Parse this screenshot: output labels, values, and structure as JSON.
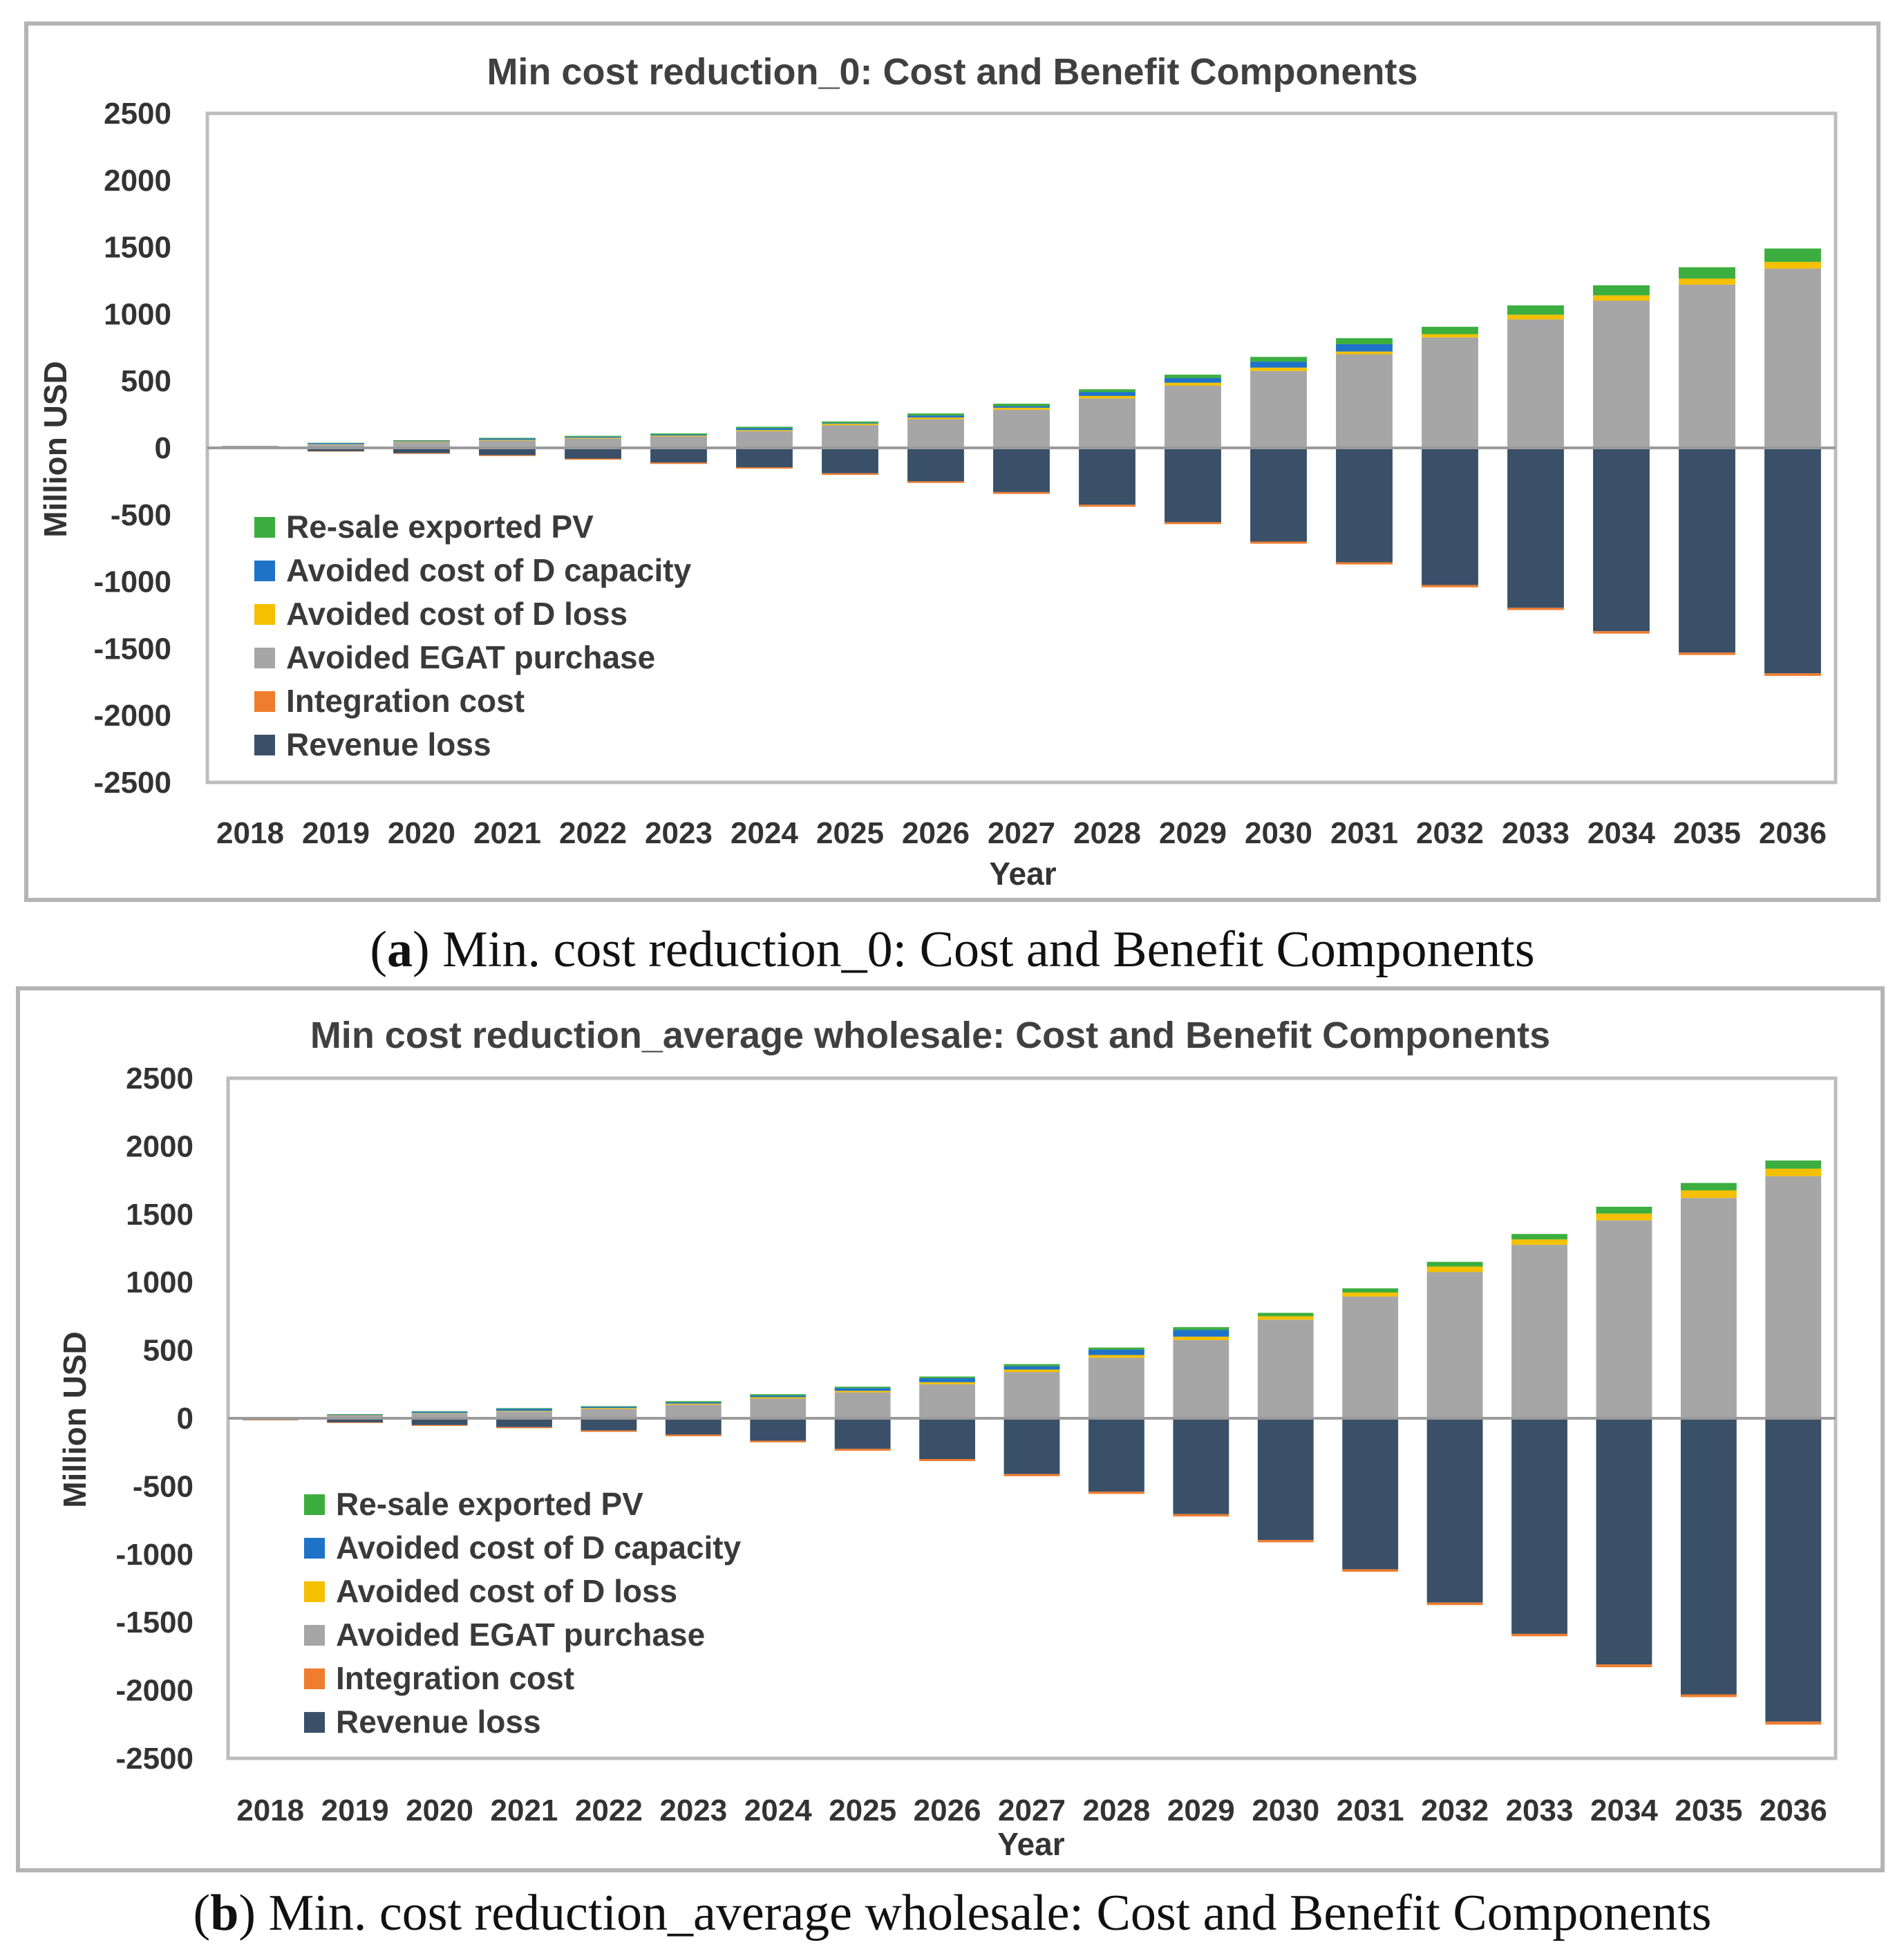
{
  "colors": {
    "resale": "#3CAE3F",
    "dcap": "#1E73C8",
    "dloss": "#F5C000",
    "egat": "#A6A6A6",
    "integ": "#F07D2E",
    "revloss": "#3A5068"
  },
  "chart_data": [
    {
      "type": "bar",
      "stacked": true,
      "title": "Min cost reduction_0: Cost and Benefit Components",
      "xlabel": "Year",
      "ylabel": "Million USD",
      "ylim": [
        -2500,
        2500
      ],
      "yticks": [
        "2500",
        "2000",
        "1500",
        "1000",
        "500",
        "0",
        "-500",
        "-1000",
        "-1500",
        "-2000",
        "-2500"
      ],
      "categories": [
        "2018",
        "2019",
        "2020",
        "2021",
        "2022",
        "2023",
        "2024",
        "2025",
        "2026",
        "2027",
        "2028",
        "2029",
        "2030",
        "2031",
        "2032",
        "2033",
        "2034",
        "2035",
        "2036"
      ],
      "legend_position": "bottom-left",
      "legend": [
        "Re-sale exported PV",
        "Avoided cost of D capacity",
        "Avoided cost of D loss",
        "Avoided EGAT purchase",
        "Integration cost",
        "Revenue loss"
      ],
      "series": [
        {
          "name": "Avoided EGAT purchase",
          "color_key": "egat",
          "values": [
            12,
            25,
            45,
            55,
            70,
            85,
            125,
            170,
            215,
            285,
            370,
            465,
            575,
            700,
            825,
            960,
            1100,
            1220,
            1340
          ]
        },
        {
          "name": "Avoided cost of D loss",
          "color_key": "dloss",
          "values": [
            1,
            3,
            4,
            5,
            6,
            7,
            8,
            10,
            12,
            15,
            18,
            22,
            25,
            20,
            25,
            35,
            40,
            45,
            50
          ]
        },
        {
          "name": "Avoided cost of D capacity",
          "color_key": "dcap",
          "values": [
            2,
            8,
            5,
            10,
            8,
            8,
            15,
            5,
            15,
            12,
            30,
            35,
            45,
            55,
            0,
            0,
            0,
            0,
            0
          ]
        },
        {
          "name": "Re-sale exported PV",
          "color_key": "resale",
          "values": [
            0,
            2,
            3,
            5,
            6,
            8,
            10,
            12,
            15,
            18,
            20,
            25,
            35,
            45,
            55,
            70,
            75,
            85,
            100
          ]
        },
        {
          "name": "Revenue loss",
          "color_key": "revloss",
          "values": [
            -8,
            -25,
            -40,
            -55,
            -80,
            -110,
            -145,
            -190,
            -250,
            -330,
            -425,
            -555,
            -700,
            -855,
            -1025,
            -1195,
            -1370,
            -1530,
            -1685
          ]
        },
        {
          "name": "Integration cost",
          "color_key": "integ",
          "values": [
            -1,
            -3,
            -5,
            -6,
            -8,
            -10,
            -10,
            -12,
            -12,
            -14,
            -15,
            -15,
            -16,
            -16,
            -17,
            -17,
            -18,
            -18,
            -19
          ]
        }
      ]
    },
    {
      "type": "bar",
      "stacked": true,
      "title": "Min cost reduction_average wholesale: Cost and Benefit Components",
      "xlabel": "Year",
      "ylabel": "Million USD",
      "ylim": [
        -2500,
        2500
      ],
      "yticks": [
        "2500",
        "2000",
        "1500",
        "1000",
        "500",
        "0",
        "-500",
        "-1000",
        "-1500",
        "-2000",
        "-2500"
      ],
      "categories": [
        "2018",
        "2019",
        "2020",
        "2021",
        "2022",
        "2023",
        "2024",
        "2025",
        "2026",
        "2027",
        "2028",
        "2029",
        "2030",
        "2031",
        "2032",
        "2033",
        "2034",
        "2035",
        "2036"
      ],
      "legend_position": "bottom-left",
      "legend": [
        "Re-sale exported PV",
        "Avoided cost of D capacity",
        "Avoided cost of D loss",
        "Avoided EGAT purchase",
        "Integration cost",
        "Revenue loss"
      ],
      "series": [
        {
          "name": "Avoided EGAT purchase",
          "color_key": "egat",
          "values": [
            5,
            20,
            35,
            50,
            70,
            100,
            145,
            190,
            250,
            340,
            445,
            575,
            725,
            895,
            1075,
            1275,
            1455,
            1620,
            1780
          ]
        },
        {
          "name": "Avoided cost of D loss",
          "color_key": "dloss",
          "values": [
            1,
            3,
            4,
            5,
            6,
            8,
            10,
            12,
            15,
            18,
            20,
            25,
            25,
            30,
            40,
            40,
            50,
            55,
            55
          ]
        },
        {
          "name": "Avoided cost of D capacity",
          "color_key": "dcap",
          "values": [
            0,
            5,
            10,
            15,
            8,
            10,
            12,
            20,
            30,
            25,
            40,
            50,
            0,
            0,
            0,
            0,
            0,
            0,
            0
          ]
        },
        {
          "name": "Re-sale exported PV",
          "color_key": "resale",
          "values": [
            0,
            2,
            3,
            5,
            5,
            8,
            10,
            10,
            12,
            15,
            15,
            20,
            25,
            30,
            35,
            40,
            50,
            55,
            60
          ]
        },
        {
          "name": "Revenue loss",
          "color_key": "revloss",
          "values": [
            -12,
            -30,
            -50,
            -65,
            -90,
            -120,
            -165,
            -225,
            -300,
            -410,
            -540,
            -705,
            -895,
            -1110,
            -1355,
            -1585,
            -1810,
            -2030,
            -2230
          ]
        },
        {
          "name": "Integration cost",
          "color_key": "integ",
          "values": [
            -3,
            -5,
            -6,
            -8,
            -10,
            -12,
            -12,
            -14,
            -15,
            -16,
            -16,
            -17,
            -17,
            -18,
            -18,
            -18,
            -20,
            -20,
            -22
          ]
        }
      ]
    }
  ],
  "captions": [
    {
      "letter": "a",
      "text": ") Min. cost reduction_0: Cost and Benefit Components"
    },
    {
      "letter": "b",
      "text": ") Min. cost reduction_average wholesale: Cost and Benefit Components"
    }
  ]
}
